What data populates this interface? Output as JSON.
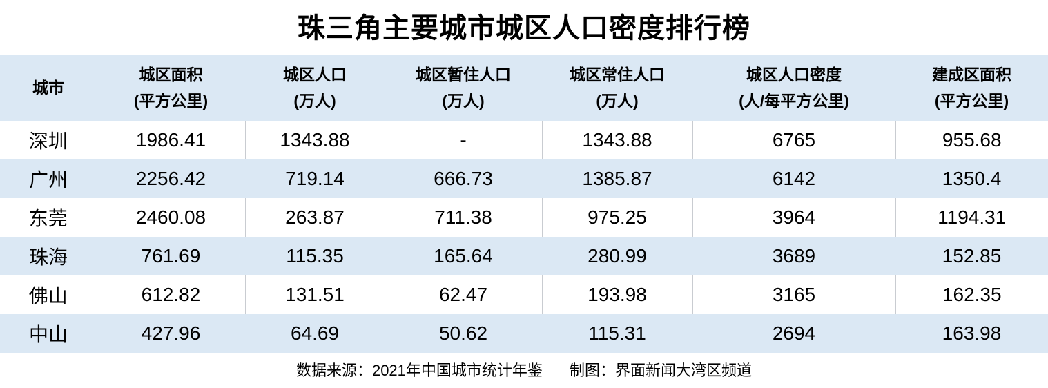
{
  "title": "珠三角主要城市城区人口密度排行榜",
  "table": {
    "columns": [
      {
        "line1": "城市",
        "line2": ""
      },
      {
        "line1": "城区面积",
        "line2": "(平方公里)"
      },
      {
        "line1": "城区人口",
        "line2": "(万人)"
      },
      {
        "line1": "城区暂住人口",
        "line2": "(万人)"
      },
      {
        "line1": "城区常住人口",
        "line2": "(万人)"
      },
      {
        "line1": "城区人口密度",
        "line2": "(人/每平方公里)"
      },
      {
        "line1": "建成区面积",
        "line2": "(平方公里)"
      }
    ],
    "rows": [
      {
        "city": "深圳",
        "values": [
          "1986.41",
          "1343.88",
          "-",
          "1343.88",
          "6765",
          "955.68"
        ]
      },
      {
        "city": "广州",
        "values": [
          "2256.42",
          "719.14",
          "666.73",
          "1385.87",
          "6142",
          "1350.4"
        ]
      },
      {
        "city": "东莞",
        "values": [
          "2460.08",
          "263.87",
          "711.38",
          "975.25",
          "3964",
          "1194.31"
        ]
      },
      {
        "city": "珠海",
        "values": [
          "761.69",
          "115.35",
          "165.64",
          "280.99",
          "3689",
          "152.85"
        ]
      },
      {
        "city": "佛山",
        "values": [
          "612.82",
          "131.51",
          "62.47",
          "193.98",
          "3165",
          "162.35"
        ]
      },
      {
        "city": "中山",
        "values": [
          "427.96",
          "64.69",
          "50.62",
          "115.31",
          "2694",
          "163.98"
        ]
      }
    ]
  },
  "footer": {
    "source": "数据来源：2021年中国城市统计年鉴",
    "credit": "制图：界面新闻大湾区频道"
  },
  "colors": {
    "header_bg": "#dbe8f4",
    "alt_row_bg": "#dbe8f4",
    "plain_row_bg": "#ffffff",
    "divider": "#c9ccd1",
    "text": "#000000"
  },
  "chart_data": {
    "type": "table",
    "title": "珠三角主要城市城区人口密度排行榜",
    "columns": [
      "城市",
      "城区面积(平方公里)",
      "城区人口(万人)",
      "城区暂住人口(万人)",
      "城区常住人口(万人)",
      "城区人口密度(人/每平方公里)",
      "建成区面积(平方公里)"
    ],
    "rows": [
      [
        "深圳",
        1986.41,
        1343.88,
        null,
        1343.88,
        6765,
        955.68
      ],
      [
        "广州",
        2256.42,
        719.14,
        666.73,
        1385.87,
        6142,
        1350.4
      ],
      [
        "东莞",
        2460.08,
        263.87,
        711.38,
        975.25,
        3964,
        1194.31
      ],
      [
        "珠海",
        761.69,
        115.35,
        165.64,
        280.99,
        3689,
        152.85
      ],
      [
        "佛山",
        612.82,
        131.51,
        62.47,
        193.98,
        3165,
        162.35
      ],
      [
        "中山",
        427.96,
        64.69,
        50.62,
        115.31,
        2694,
        163.98
      ]
    ],
    "notes": "深圳城区暂住人口显示为 -",
    "source_caption": "数据来源：2021年中国城市统计年鉴    制图：界面新闻大湾区频道"
  }
}
